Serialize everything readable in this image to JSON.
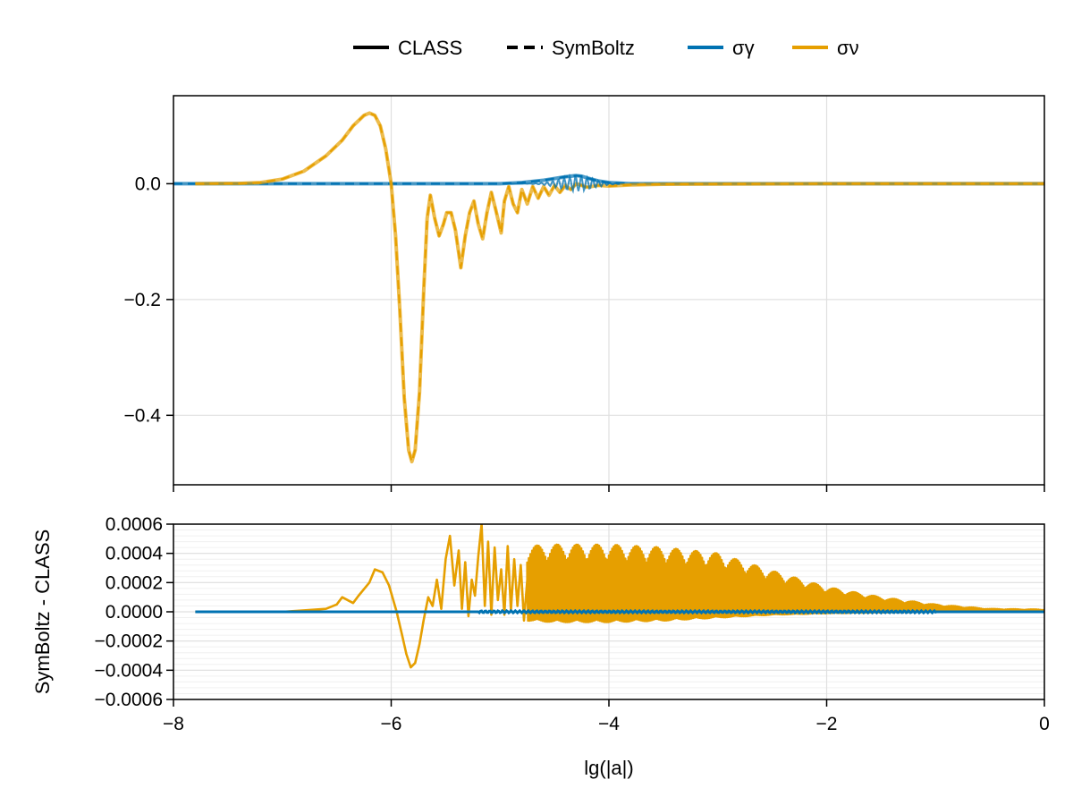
{
  "legend": {
    "items": [
      {
        "label": "CLASS",
        "style": "solid",
        "color": "#000000"
      },
      {
        "label": "SymBoltz",
        "style": "dashed",
        "color": "#000000"
      },
      {
        "label": "σγ",
        "style": "solid",
        "color": "#0072B2"
      },
      {
        "label": "σν",
        "style": "solid",
        "color": "#E69F00"
      }
    ]
  },
  "colors": {
    "gamma": "#0072B2",
    "nu": "#E69F00",
    "grid": "#e0e0e0",
    "minor_grid": "#f0f0f0"
  },
  "chart_data": [
    {
      "type": "line",
      "panel": "top",
      "xlim": [
        -8,
        0
      ],
      "ylim": [
        -0.52,
        0.152
      ],
      "yticks": [
        0.0,
        -0.2,
        -0.4
      ],
      "ytick_labels": [
        "0.0",
        "−0.2",
        "−0.4"
      ],
      "xticks": [
        -8,
        -6,
        -4,
        -2,
        0
      ],
      "series": [
        {
          "name": "σν",
          "color": "#E69F00",
          "points": [
            [
              -7.8,
              0.0
            ],
            [
              -7.4,
              0.0005
            ],
            [
              -7.2,
              0.002
            ],
            [
              -7.0,
              0.008
            ],
            [
              -6.8,
              0.022
            ],
            [
              -6.6,
              0.048
            ],
            [
              -6.45,
              0.075
            ],
            [
              -6.35,
              0.1
            ],
            [
              -6.25,
              0.118
            ],
            [
              -6.2,
              0.122
            ],
            [
              -6.15,
              0.118
            ],
            [
              -6.1,
              0.1
            ],
            [
              -6.05,
              0.06
            ],
            [
              -6.0,
              0.0
            ],
            [
              -5.96,
              -0.09
            ],
            [
              -5.92,
              -0.22
            ],
            [
              -5.88,
              -0.37
            ],
            [
              -5.84,
              -0.46
            ],
            [
              -5.81,
              -0.48
            ],
            [
              -5.78,
              -0.46
            ],
            [
              -5.74,
              -0.36
            ],
            [
              -5.7,
              -0.18
            ],
            [
              -5.67,
              -0.06
            ],
            [
              -5.64,
              -0.02
            ],
            [
              -5.6,
              -0.06
            ],
            [
              -5.56,
              -0.09
            ],
            [
              -5.52,
              -0.07
            ],
            [
              -5.49,
              -0.05
            ],
            [
              -5.45,
              -0.05
            ],
            [
              -5.41,
              -0.08
            ],
            [
              -5.36,
              -0.145
            ],
            [
              -5.32,
              -0.09
            ],
            [
              -5.28,
              -0.05
            ],
            [
              -5.24,
              -0.03
            ],
            [
              -5.2,
              -0.07
            ],
            [
              -5.16,
              -0.095
            ],
            [
              -5.12,
              -0.05
            ],
            [
              -5.08,
              -0.015
            ],
            [
              -5.04,
              -0.045
            ],
            [
              -4.99,
              -0.085
            ],
            [
              -4.96,
              -0.03
            ],
            [
              -4.92,
              -0.005
            ],
            [
              -4.88,
              -0.035
            ],
            [
              -4.84,
              -0.05
            ],
            [
              -4.8,
              -0.01
            ],
            [
              -4.75,
              -0.035
            ],
            [
              -4.7,
              -0.005
            ],
            [
              -4.65,
              -0.025
            ],
            [
              -4.6,
              -0.005
            ],
            [
              -4.55,
              -0.02
            ],
            [
              -4.5,
              -0.003
            ],
            [
              -4.45,
              -0.015
            ],
            [
              -4.4,
              -0.003
            ],
            [
              -4.35,
              -0.01
            ],
            [
              -4.3,
              0.0
            ],
            [
              -4.2,
              -0.006
            ],
            [
              -4.1,
              -0.003
            ],
            [
              -4.0,
              -0.004
            ],
            [
              -3.8,
              -0.002
            ],
            [
              -3.5,
              -0.001
            ],
            [
              -3.0,
              -0.0005
            ],
            [
              -2.0,
              0.0
            ],
            [
              0.0,
              0.0
            ]
          ]
        },
        {
          "name": "σγ",
          "color": "#0072B2",
          "points": [
            [
              -8.0,
              0.0
            ],
            [
              -5.0,
              0.0
            ],
            [
              -4.8,
              0.002
            ],
            [
              -4.6,
              0.006
            ],
            [
              -4.5,
              0.009
            ],
            [
              -4.4,
              0.012
            ],
            [
              -4.3,
              0.014
            ],
            [
              -4.25,
              0.013
            ],
            [
              -4.2,
              0.01
            ],
            [
              -4.1,
              0.005
            ],
            [
              -4.0,
              0.002
            ],
            [
              -3.8,
              0.0
            ],
            [
              0.0,
              0.0
            ]
          ]
        }
      ]
    },
    {
      "type": "line",
      "panel": "bottom",
      "xlim": [
        -8,
        0
      ],
      "ylim": [
        -0.0006,
        0.0006
      ],
      "xlabel": "lg(|a|)",
      "ylabel": "SymBoltz - CLASS",
      "yticks": [
        0.0006,
        0.0004,
        0.0002,
        0.0,
        -0.0002,
        -0.0004,
        -0.0006
      ],
      "ytick_labels": [
        "0.0006",
        "0.0004",
        "0.0002",
        "0.0000",
        "−0.0002",
        "−0.0004",
        "−0.0006"
      ],
      "xticks": [
        -8,
        -6,
        -4,
        -2,
        0
      ],
      "xtick_labels": [
        "−8",
        "−6",
        "−4",
        "−2",
        "0"
      ],
      "series": [
        {
          "name": "σν",
          "color": "#E69F00",
          "points": [
            [
              -7.8,
              0.0
            ],
            [
              -7.0,
              0.0
            ],
            [
              -6.8,
              1e-05
            ],
            [
              -6.6,
              2e-05
            ],
            [
              -6.5,
              5e-05
            ],
            [
              -6.45,
              0.0001
            ],
            [
              -6.35,
              6e-05
            ],
            [
              -6.3,
              0.00011
            ],
            [
              -6.2,
              0.0002
            ],
            [
              -6.15,
              0.00029
            ],
            [
              -6.08,
              0.00027
            ],
            [
              -6.02,
              0.00018
            ],
            [
              -5.95,
              0.0
            ],
            [
              -5.9,
              -0.00016
            ],
            [
              -5.86,
              -0.00029
            ],
            [
              -5.82,
              -0.00038
            ],
            [
              -5.78,
              -0.00035
            ],
            [
              -5.74,
              -0.00022
            ],
            [
              -5.7,
              -5e-05
            ],
            [
              -5.66,
              0.0001
            ],
            [
              -5.62,
              4e-05
            ],
            [
              -5.58,
              0.00022
            ],
            [
              -5.54,
              2e-05
            ],
            [
              -5.5,
              0.00036
            ],
            [
              -5.46,
              0.00052
            ],
            [
              -5.42,
              0.00018
            ],
            [
              -5.38,
              0.00042
            ],
            [
              -5.35,
              2e-05
            ],
            [
              -5.32,
              0.00034
            ],
            [
              -5.29,
              -3e-05
            ],
            [
              -5.26,
              0.00022
            ],
            [
              -5.23,
              0.00011
            ],
            [
              -5.2,
              0.00038
            ],
            [
              -5.17,
              0.0006
            ],
            [
              -5.14,
              4e-05
            ],
            [
              -5.11,
              0.00048
            ],
            [
              -5.08,
              -2e-05
            ],
            [
              -5.05,
              0.00044
            ],
            [
              -5.02,
              8e-05
            ],
            [
              -4.99,
              0.00029
            ],
            [
              -4.96,
              -2e-05
            ],
            [
              -4.93,
              0.00045
            ],
            [
              -4.9,
              1e-05
            ],
            [
              -4.87,
              0.00036
            ],
            [
              -4.84,
              4e-05
            ],
            [
              -4.81,
              0.00032
            ],
            [
              -4.78,
              -6e-05
            ],
            [
              -4.75,
              0.00022
            ]
          ],
          "envelope": {
            "from_x": -4.75,
            "to_x": 0.0,
            "upper": [
              [
                -4.75,
                0.00045
              ],
              [
                -4.5,
                0.00046
              ],
              [
                -4.0,
                0.00046
              ],
              [
                -3.5,
                0.00044
              ],
              [
                -3.0,
                0.0004
              ],
              [
                -2.5,
                0.00028
              ],
              [
                -2.0,
                0.00017
              ],
              [
                -1.5,
                0.0001
              ],
              [
                -1.0,
                5e-05
              ],
              [
                -0.5,
                2e-05
              ],
              [
                0.0,
                1.5e-05
              ]
            ],
            "lower": [
              [
                -4.75,
                -6e-05
              ],
              [
                -4.5,
                -7e-05
              ],
              [
                -4.0,
                -7e-05
              ],
              [
                -3.5,
                -6e-05
              ],
              [
                -3.0,
                -4e-05
              ],
              [
                -2.5,
                -2e-05
              ],
              [
                -2.0,
                -1e-05
              ],
              [
                -1.0,
                0.0
              ],
              [
                0.0,
                0.0
              ]
            ]
          }
        },
        {
          "name": "σγ",
          "color": "#0072B2",
          "points": [
            [
              -7.8,
              0.0
            ],
            [
              0.0,
              0.0
            ]
          ]
        }
      ]
    }
  ]
}
